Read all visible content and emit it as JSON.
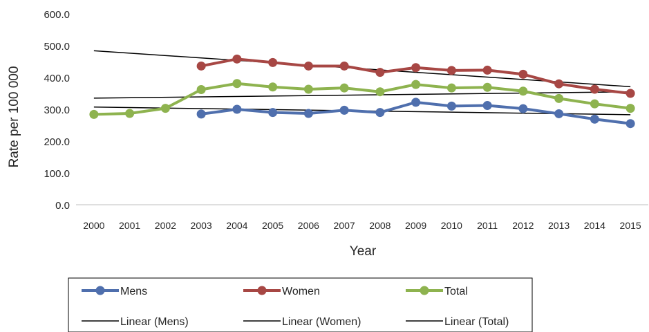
{
  "chart_data": {
    "type": "line",
    "title": "",
    "xlabel": "Year",
    "ylabel": "Rate  per  100 000",
    "ylim": [
      0,
      600
    ],
    "yticks": [
      "0.0",
      "100.0",
      "200.0",
      "300.0",
      "400.0",
      "500.0",
      "600.0"
    ],
    "categories": [
      "2000",
      "2001",
      "2002",
      "2003",
      "2004",
      "2005",
      "2006",
      "2007",
      "2008",
      "2009",
      "2010",
      "2011",
      "2012",
      "2013",
      "2014",
      "2015"
    ],
    "grid": false,
    "legend_position": "bottom",
    "series": [
      {
        "name": "Mens",
        "color": "#4f6fad",
        "values": [
          null,
          null,
          null,
          285,
          300,
          290,
          287,
          297,
          290,
          322,
          310,
          312,
          302,
          286,
          269,
          255
        ]
      },
      {
        "name": "Women",
        "color": "#a74744",
        "values": [
          null,
          null,
          null,
          436,
          458,
          447,
          436,
          436,
          416,
          431,
          422,
          423,
          410,
          380,
          363,
          350
        ]
      },
      {
        "name": "Total",
        "color": "#8eb34f",
        "values": [
          284,
          287,
          303,
          362,
          381,
          370,
          363,
          367,
          355,
          378,
          367,
          369,
          357,
          334,
          317,
          303
        ]
      }
    ],
    "trendlines": [
      {
        "name": "Linear (Mens)",
        "color": "#000000",
        "start": [
          2000,
          307
        ],
        "end": [
          2015,
          283
        ]
      },
      {
        "name": "Linear (Women)",
        "color": "#000000",
        "start": [
          2000,
          484
        ],
        "end": [
          2015,
          371
        ]
      },
      {
        "name": "Linear (Total)",
        "color": "#000000",
        "start": [
          2000,
          335
        ],
        "end": [
          2015,
          355
        ]
      }
    ]
  }
}
